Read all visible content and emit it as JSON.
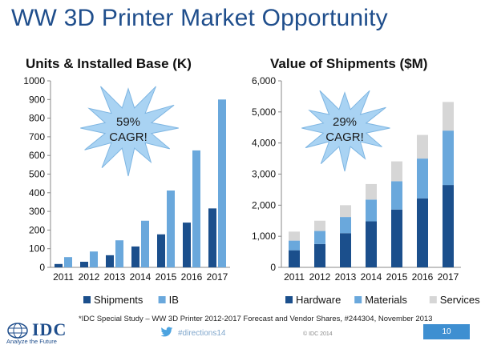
{
  "title": "WW 3D Printer Market Opportunity",
  "charts": {
    "left": {
      "subtitle": "Units & Installed Base (K)",
      "burst": {
        "line1": "59%",
        "line2": "CAGR!"
      }
    },
    "right": {
      "subtitle": "Value of Shipments ($M)",
      "burst": {
        "line1": "29%",
        "line2": "CAGR!"
      }
    }
  },
  "colors": {
    "dark_blue": "#1b4f8c",
    "light_blue": "#6aa8dc",
    "light_gray": "#d6d6d6",
    "title_blue": "#1f4e8c",
    "burst_fill": "#a9d3f3"
  },
  "chart_data": [
    {
      "type": "bar",
      "title": "Units & Installed Base (K)",
      "categories": [
        "2011",
        "2012",
        "2013",
        "2014",
        "2015",
        "2016",
        "2017"
      ],
      "series": [
        {
          "name": "Shipments",
          "values": [
            18,
            30,
            65,
            112,
            177,
            240,
            316
          ]
        },
        {
          "name": "IB",
          "values": [
            55,
            85,
            145,
            250,
            412,
            627,
            900
          ]
        }
      ],
      "ylim": [
        0,
        1000
      ],
      "yticks": [
        "0",
        "100",
        "200",
        "300",
        "400",
        "500",
        "600",
        "700",
        "800",
        "900",
        "1000"
      ],
      "legend": "bottom",
      "grid": false
    },
    {
      "type": "bar",
      "stacked": true,
      "title": "Value of Shipments ($M)",
      "categories": [
        "2011",
        "2012",
        "2013",
        "2014",
        "2015",
        "2016",
        "2017"
      ],
      "series": [
        {
          "name": "Hardware",
          "values": [
            550,
            750,
            1100,
            1480,
            1860,
            2220,
            2650
          ]
        },
        {
          "name": "Materials",
          "values": [
            310,
            420,
            520,
            700,
            910,
            1280,
            1750
          ]
        },
        {
          "name": "Services",
          "values": [
            290,
            330,
            380,
            500,
            640,
            760,
            920
          ]
        }
      ],
      "ylim": [
        0,
        6000
      ],
      "yticks": [
        "0",
        "1,000",
        "2,000",
        "3,000",
        "4,000",
        "5,000",
        "6,000"
      ],
      "legend": "bottom",
      "grid": false
    }
  ],
  "footer": {
    "footnote": "*IDC Special Study – WW 3D Printer 2012-2017 Forecast and Vendor Shares, #244304, November 2013",
    "logo_text": "IDC",
    "tagline": "Analyze the Future",
    "hashtag": "#directions14",
    "copyright": "© IDC 2014",
    "page": "10"
  }
}
